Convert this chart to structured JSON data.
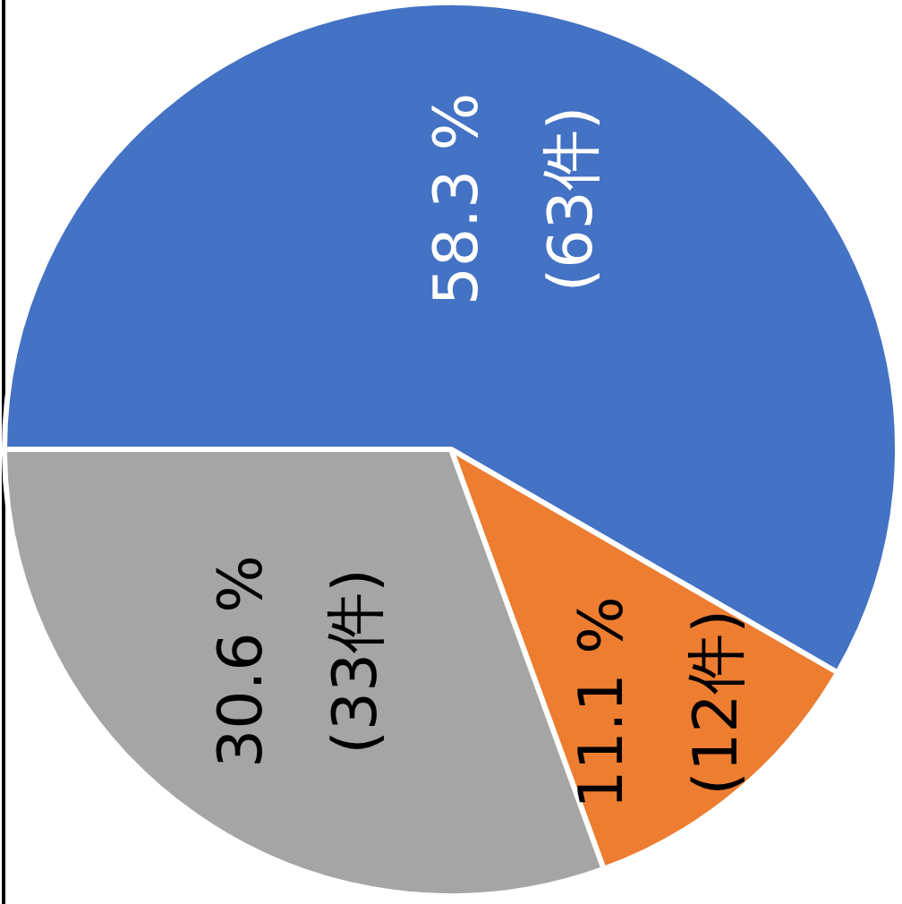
{
  "chart_data": {
    "type": "pie",
    "categories": [
      null,
      null,
      null
    ],
    "values": [
      63,
      12,
      33
    ],
    "colors": [
      "#4472c4",
      "#ed7d31",
      "#a5a5a5"
    ],
    "value_labels": [
      "58.3 %\n(63件)",
      "11.1 %\n(12件)",
      "30.6 %\n(33件)"
    ],
    "legend": false
  }
}
